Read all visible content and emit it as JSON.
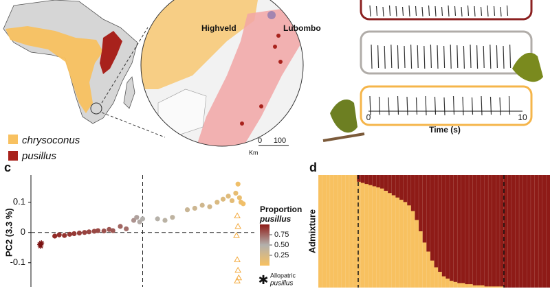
{
  "figure": {
    "legend": [
      "chrysoconus",
      "pusillus"
    ],
    "map_labels": [
      "Highveld",
      "Lubombo"
    ],
    "scale_bar": [
      "0",
      "100",
      "Km"
    ],
    "song_axis": [
      "0",
      "10",
      "Time (s)"
    ],
    "panel_labels": [
      "c",
      "d"
    ]
  },
  "chart_data": [
    {
      "type": "scatter",
      "ylabel": "PC2 (3.3 %)",
      "xlim": [
        -0.15,
        0.15
      ],
      "ylim": [
        -0.18,
        0.19
      ],
      "yticks": [
        0.1,
        0,
        -0.1
      ],
      "colorbar": {
        "title": "Proportion",
        "subtitle": "pusillus",
        "range": [
          0,
          1
        ],
        "ticks": [
          0.75,
          {
            "value": 0.5,
            "label": "0.50"
          },
          0.25
        ],
        "colors": [
          "#f8c160",
          "#b3b0ac",
          "#8e1b17"
        ]
      },
      "annotation": [
        "Allopatric",
        "pusillus"
      ],
      "series": [
        {
          "marker": "circle",
          "x": [
            -0.118,
            -0.112,
            -0.105,
            -0.098,
            -0.092,
            -0.085,
            -0.078,
            -0.072,
            -0.065,
            -0.06,
            -0.052,
            -0.045,
            -0.04,
            -0.03,
            -0.022,
            -0.012,
            -0.008,
            -0.004,
            0.0,
            0.02,
            0.03,
            0.04,
            0.06,
            0.07,
            0.08,
            0.09,
            0.1,
            0.108,
            0.115,
            0.12,
            0.125,
            0.13,
            0.132,
            0.128,
            0.135
          ],
          "values": [
            -0.012,
            -0.008,
            -0.01,
            -0.006,
            -0.004,
            -0.002,
            0.0,
            0.002,
            0.004,
            0.006,
            0.005,
            0.01,
            0.006,
            0.02,
            0.012,
            0.04,
            0.05,
            0.035,
            0.045,
            0.045,
            0.04,
            0.05,
            0.075,
            0.08,
            0.09,
            0.085,
            0.1,
            0.11,
            0.12,
            0.105,
            0.13,
            0.115,
            0.1,
            0.16,
            0.095
          ],
          "proportion": [
            0.95,
            0.93,
            0.92,
            0.9,
            0.9,
            0.88,
            0.87,
            0.86,
            0.85,
            0.85,
            0.82,
            0.8,
            0.8,
            0.75,
            0.72,
            0.6,
            0.55,
            0.52,
            0.5,
            0.48,
            0.45,
            0.42,
            0.35,
            0.32,
            0.3,
            0.28,
            0.22,
            0.2,
            0.18,
            0.15,
            0.12,
            0.1,
            0.08,
            0.06,
            0.05
          ]
        },
        {
          "marker": "triangle",
          "color": "#f3a93c",
          "x": [
            0.127,
            0.128,
            0.126,
            0.127,
            0.128,
            0.129,
            0.127
          ],
          "values": [
            0.055,
            0.02,
            -0.01,
            -0.09,
            -0.125,
            -0.15,
            -0.16
          ]
        },
        {
          "marker": "star",
          "color": "#7a1010",
          "x": [
            -0.138,
            -0.136,
            -0.137
          ],
          "values": [
            -0.04,
            -0.035,
            -0.045
          ]
        }
      ]
    },
    {
      "type": "admixture",
      "ylabel": "Admixture",
      "colors": [
        "#f8c160",
        "#8e1b17"
      ],
      "values": [
        0,
        0,
        0,
        0,
        0,
        0,
        0,
        0,
        0,
        0,
        0.06,
        0.07,
        0.08,
        0.09,
        0.1,
        0.11,
        0.12,
        0.14,
        0.16,
        0.18,
        0.2,
        0.22,
        0.24,
        0.27,
        0.32,
        0.4,
        0.5,
        0.6,
        0.68,
        0.76,
        0.82,
        0.86,
        0.9,
        0.92,
        0.94,
        0.95,
        0.96,
        0.96,
        0.97,
        0.97,
        0.98,
        0.98,
        0.98,
        0.99,
        0.99,
        0.99,
        0.99,
        0.99,
        1,
        1,
        1,
        1,
        1,
        1,
        1,
        1,
        1,
        1,
        1,
        1
      ]
    }
  ]
}
